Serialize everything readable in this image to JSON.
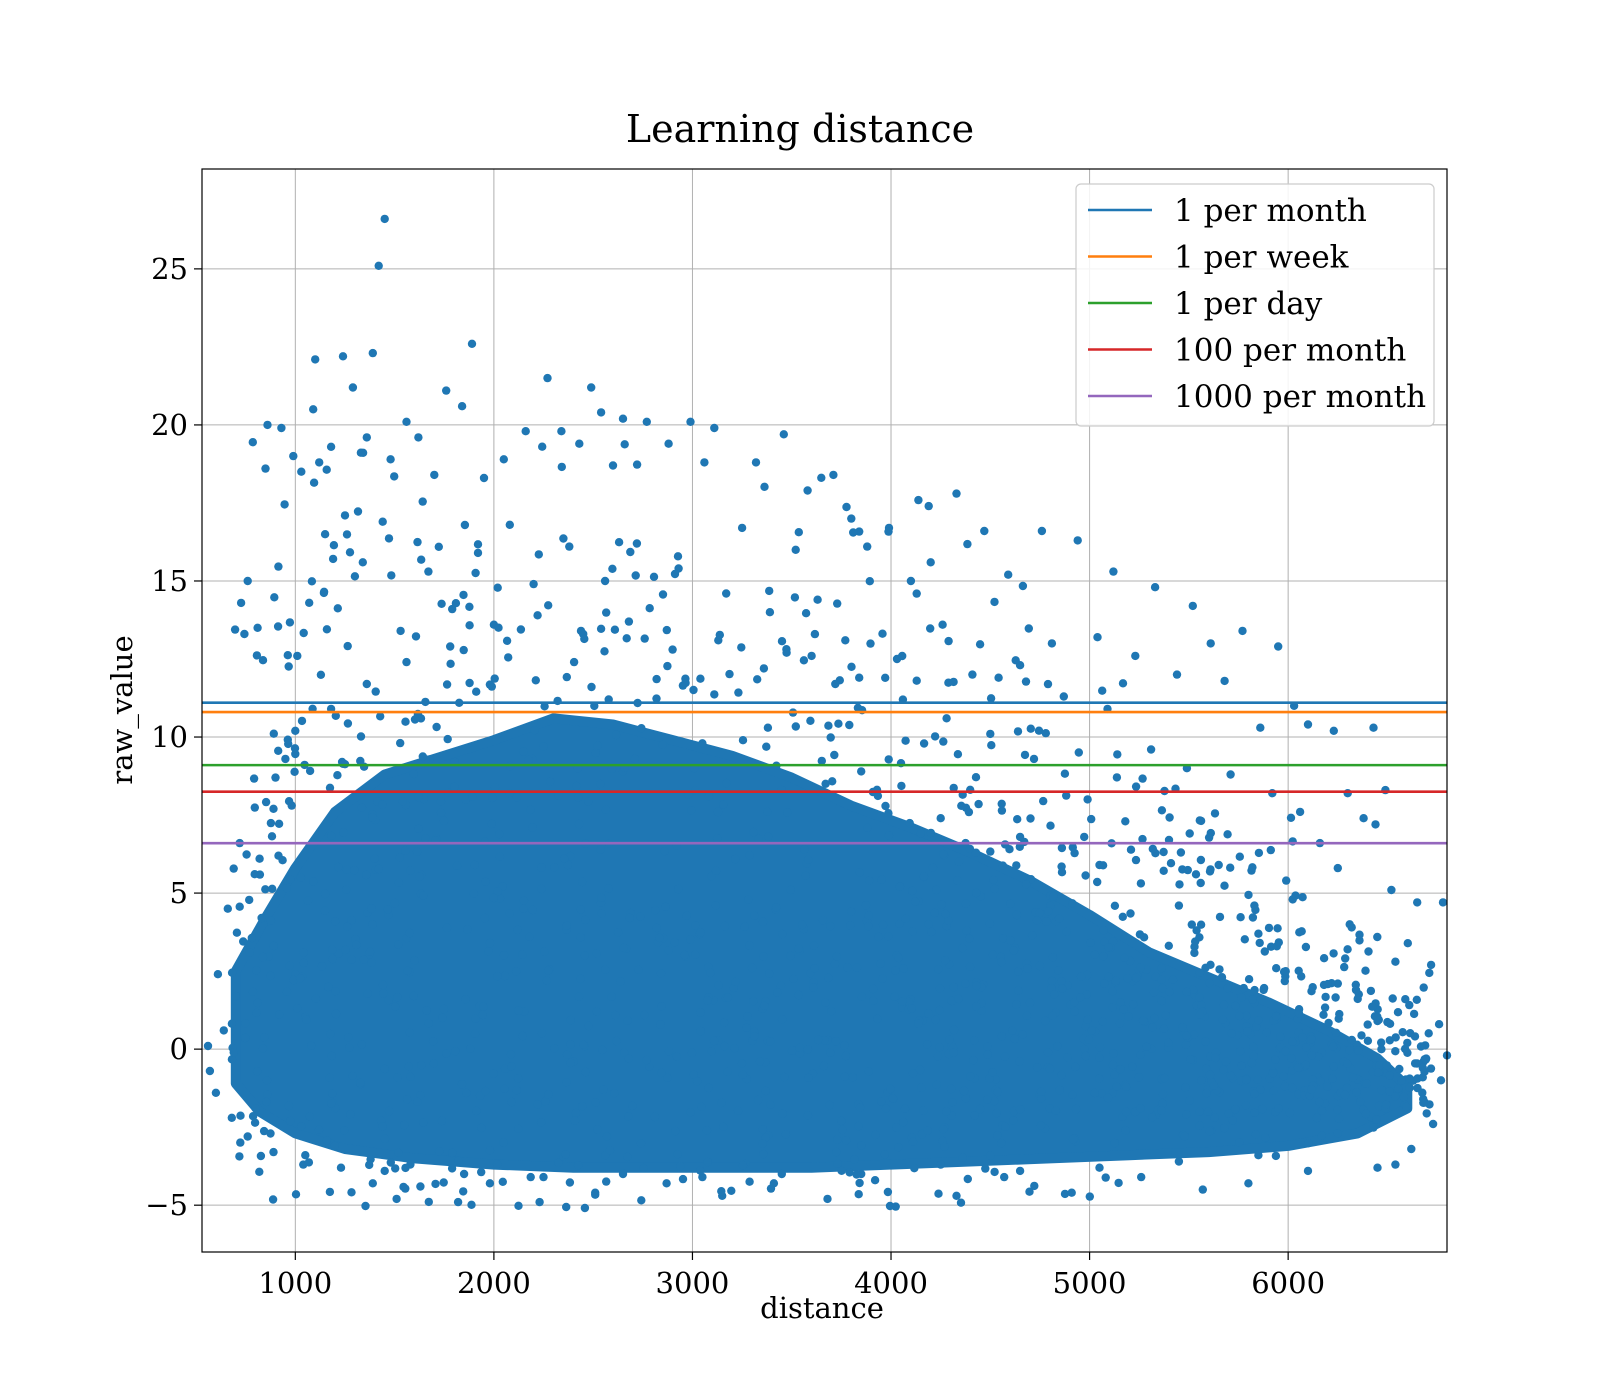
{
  "chart_data": {
    "type": "scatter",
    "title": "Learning distance",
    "xlabel": "distance",
    "ylabel": "raw_value",
    "xlim": [
      530,
      6800
    ],
    "ylim": [
      -6.5,
      28.2
    ],
    "xticks": [
      1000,
      2000,
      3000,
      4000,
      5000,
      6000
    ],
    "xtick_labels": [
      "1000",
      "2000",
      "3000",
      "4000",
      "5000",
      "6000"
    ],
    "yticks": [
      -5,
      0,
      5,
      10,
      15,
      20,
      25
    ],
    "ytick_labels": [
      "−5",
      "0",
      "5",
      "10",
      "15",
      "20",
      "25"
    ],
    "grid": true,
    "legend_position": "top-right",
    "scatter_color": "#1f77b4",
    "hlines": [
      {
        "name": "1 per month",
        "y": 11.1,
        "color": "#1f77b4"
      },
      {
        "name": "1 per week",
        "y": 10.8,
        "color": "#ff7f0e"
      },
      {
        "name": "1 per day",
        "y": 9.1,
        "color": "#2ca02c"
      },
      {
        "name": "100 per month",
        "y": 8.25,
        "color": "#d62728"
      },
      {
        "name": "1000 per month",
        "y": 6.6,
        "color": "#9467bd"
      }
    ],
    "scatter_points": [
      [
        1450,
        26.6
      ],
      [
        1420,
        25.1
      ],
      [
        1890,
        22.6
      ],
      [
        1100,
        22.1
      ],
      [
        1240,
        22.2
      ],
      [
        1390,
        22.3
      ],
      [
        2270,
        21.5
      ],
      [
        2490,
        21.2
      ],
      [
        1760,
        21.1
      ],
      [
        1290,
        21.2
      ],
      [
        3460,
        19.7
      ],
      [
        3110,
        19.9
      ],
      [
        2990,
        20.1
      ],
      [
        1090,
        20.5
      ],
      [
        2770,
        20.1
      ],
      [
        2650,
        20.2
      ],
      [
        2540,
        20.4
      ],
      [
        860,
        20.0
      ],
      [
        1840,
        20.6
      ],
      [
        1560,
        20.1
      ],
      [
        3710,
        18.4
      ],
      [
        4330,
        17.8
      ],
      [
        4190,
        17.4
      ],
      [
        4470,
        16.6
      ],
      [
        4760,
        16.6
      ],
      [
        4940,
        16.3
      ],
      [
        5120,
        15.3
      ],
      [
        5330,
        14.8
      ],
      [
        5520,
        14.2
      ],
      [
        5770,
        13.4
      ],
      [
        5950,
        12.9
      ],
      [
        5610,
        13.0
      ],
      [
        4200,
        15.6
      ],
      [
        3990,
        16.7
      ],
      [
        3800,
        17.0
      ],
      [
        3520,
        16.0
      ],
      [
        3250,
        16.7
      ],
      [
        6430,
        10.3
      ],
      [
        6230,
        10.2
      ],
      [
        6030,
        11.0
      ],
      [
        6490,
        8.3
      ],
      [
        6440,
        7.2
      ],
      [
        6520,
        5.1
      ],
      [
        6650,
        4.7
      ],
      [
        6780,
        4.7
      ],
      [
        6720,
        2.7
      ],
      [
        6590,
        1.6
      ],
      [
        6760,
        0.8
      ],
      [
        6800,
        -0.2
      ],
      [
        6770,
        -1.0
      ],
      [
        6730,
        -2.4
      ],
      [
        6620,
        -3.2
      ],
      [
        6450,
        -3.8
      ],
      [
        560,
        0.1
      ],
      [
        610,
        2.4
      ],
      [
        660,
        4.5
      ],
      [
        720,
        6.6
      ],
      [
        760,
        15.0
      ],
      [
        810,
        13.5
      ],
      [
        850,
        18.6
      ],
      [
        930,
        19.9
      ],
      [
        990,
        19.0
      ],
      [
        1030,
        18.5
      ],
      [
        1120,
        18.8
      ],
      [
        1180,
        19.3
      ],
      [
        1360,
        19.6
      ],
      [
        1480,
        18.9
      ],
      [
        1620,
        19.6
      ],
      [
        1700,
        18.4
      ],
      [
        1950,
        18.3
      ],
      [
        2050,
        18.9
      ],
      [
        2160,
        19.8
      ],
      [
        2340,
        19.8
      ],
      [
        2430,
        19.4
      ],
      [
        2600,
        18.7
      ],
      [
        2880,
        19.4
      ],
      [
        3060,
        18.8
      ],
      [
        3320,
        18.8
      ],
      [
        3580,
        17.9
      ],
      [
        3880,
        16.1
      ],
      [
        4100,
        15.0
      ],
      [
        4590,
        15.2
      ],
      [
        4810,
        13.0
      ],
      [
        5040,
        13.2
      ],
      [
        5230,
        12.6
      ],
      [
        5440,
        12.0
      ],
      [
        5680,
        11.8
      ],
      [
        5860,
        10.3
      ],
      [
        6100,
        10.4
      ],
      [
        6300,
        8.2
      ],
      [
        6380,
        7.4
      ],
      [
        6250,
        5.8
      ],
      [
        6160,
        6.6
      ],
      [
        6320,
        3.9
      ],
      [
        6540,
        2.8
      ],
      [
        6600,
        0.2
      ],
      [
        6680,
        -1.6
      ],
      [
        6540,
        -3.7
      ],
      [
        6100,
        -3.9
      ],
      [
        5800,
        -4.3
      ],
      [
        5570,
        -4.5
      ],
      [
        5260,
        -4.1
      ],
      [
        4910,
        -4.6
      ],
      [
        4570,
        -4.1
      ],
      [
        4330,
        -4.7
      ],
      [
        3920,
        -4.2
      ],
      [
        3680,
        -4.8
      ],
      [
        3410,
        -4.3
      ],
      [
        3150,
        -4.7
      ],
      [
        2870,
        -4.3
      ],
      [
        2510,
        -4.6
      ],
      [
        2230,
        -4.9
      ],
      [
        1980,
        -4.3
      ],
      [
        1820,
        -4.9
      ],
      [
        1630,
        -4.4
      ],
      [
        1510,
        -4.8
      ],
      [
        1390,
        -4.3
      ],
      [
        1230,
        -3.8
      ],
      [
        1040,
        -3.7
      ],
      [
        890,
        -3.3
      ],
      [
        760,
        -2.8
      ],
      [
        680,
        -2.2
      ],
      [
        600,
        -1.4
      ],
      [
        570,
        -0.7
      ],
      [
        640,
        0.6
      ],
      [
        700,
        1.7
      ],
      [
        770,
        3.1
      ],
      [
        830,
        4.2
      ],
      [
        890,
        7.7
      ],
      [
        950,
        9.3
      ],
      [
        1010,
        12.6
      ],
      [
        1070,
        14.3
      ],
      [
        1150,
        16.5
      ],
      [
        1250,
        17.1
      ],
      [
        1340,
        15.6
      ],
      [
        1440,
        16.9
      ],
      [
        1530,
        13.4
      ],
      [
        1670,
        15.3
      ],
      [
        1790,
        14.1
      ],
      [
        1920,
        15.9
      ],
      [
        2080,
        16.8
      ],
      [
        2200,
        14.9
      ],
      [
        2380,
        16.1
      ],
      [
        2560,
        15.0
      ],
      [
        2720,
        16.2
      ],
      [
        2930,
        15.4
      ],
      [
        3170,
        14.6
      ],
      [
        3390,
        14.0
      ],
      [
        3630,
        14.4
      ],
      [
        3770,
        13.1
      ],
      [
        4030,
        12.5
      ],
      [
        4260,
        13.6
      ],
      [
        4410,
        12.0
      ],
      [
        4650,
        12.3
      ],
      [
        4870,
        11.3
      ],
      [
        5090,
        10.9
      ],
      [
        5310,
        9.6
      ],
      [
        5490,
        9.0
      ],
      [
        5710,
        8.8
      ],
      [
        5920,
        8.2
      ],
      [
        6060,
        7.6
      ],
      [
        5990,
        5.4
      ],
      [
        5830,
        4.6
      ],
      [
        5650,
        5.9
      ],
      [
        5400,
        6.7
      ],
      [
        5180,
        7.3
      ],
      [
        4990,
        8.0
      ],
      [
        4720,
        9.3
      ],
      [
        4500,
        10.1
      ],
      [
        4280,
        10.6
      ],
      [
        4060,
        11.2
      ],
      [
        3840,
        11.9
      ],
      [
        3600,
        12.6
      ],
      [
        3360,
        12.2
      ],
      [
        3130,
        13.1
      ],
      [
        2900,
        12.8
      ],
      [
        2680,
        13.7
      ],
      [
        2450,
        13.3
      ],
      [
        2220,
        13.9
      ],
      [
        2000,
        13.6
      ],
      [
        1780,
        12.9
      ],
      [
        1560,
        12.4
      ],
      [
        1360,
        11.7
      ],
      [
        1180,
        10.9
      ],
      [
        1000,
        10.2
      ],
      [
        900,
        8.7
      ],
      [
        820,
        6.1
      ],
      [
        1000,
        2.4
      ],
      [
        1400,
        6.1
      ],
      [
        1800,
        8.4
      ],
      [
        2250,
        9.7
      ],
      [
        2650,
        8.9
      ],
      [
        3050,
        9.8
      ],
      [
        3450,
        8.3
      ],
      [
        3850,
        8.9
      ],
      [
        4250,
        7.4
      ],
      [
        4650,
        6.8
      ],
      [
        5050,
        5.9
      ],
      [
        5450,
        4.6
      ],
      [
        5850,
        3.7
      ],
      [
        6250,
        2.1
      ],
      [
        6450,
        0.9
      ],
      [
        6250,
        -2.7
      ],
      [
        5850,
        -3.4
      ],
      [
        5450,
        -3.6
      ],
      [
        5050,
        -3.8
      ],
      [
        4650,
        -3.9
      ],
      [
        4250,
        -3.7
      ],
      [
        3850,
        -4.0
      ],
      [
        3450,
        -4.0
      ],
      [
        3050,
        -4.1
      ],
      [
        2650,
        -4.0
      ],
      [
        2250,
        -4.1
      ],
      [
        1850,
        -4.0
      ],
      [
        1450,
        -3.9
      ],
      [
        1050,
        -3.4
      ],
      [
        800,
        -1.9
      ]
    ]
  }
}
